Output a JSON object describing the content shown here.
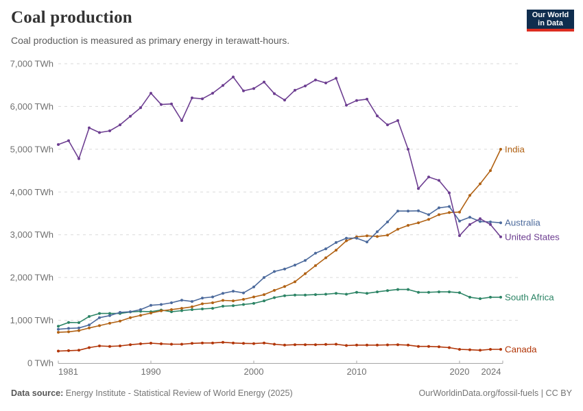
{
  "header": {
    "title": "Coal production",
    "subtitle": "Coal production is measured as primary energy in terawatt-hours."
  },
  "logo": {
    "line1": "Our World",
    "line2": "in Data",
    "bg_color": "#0f2d4e",
    "accent_color": "#dd2d20"
  },
  "footer": {
    "source_label": "Data source:",
    "source": "Energy Institute - Statistical Review of World Energy (2025)",
    "link": "OurWorldinData.org/fossil-fuels",
    "divider": " | ",
    "license": "CC BY"
  },
  "chart_data": {
    "type": "line",
    "title": "Coal production",
    "unit": "TWh",
    "xlim": [
      1981,
      2024
    ],
    "ylim": [
      0,
      7000
    ],
    "x_ticks": [
      1981,
      1990,
      2000,
      2010,
      2020,
      2024
    ],
    "y_ticks": [
      0,
      1000,
      2000,
      3000,
      4000,
      5000,
      6000,
      7000
    ],
    "grid": "horizontal-dashed",
    "legend_position": "end-of-line-labels",
    "grid_color": "#dadada",
    "axis_color": "#a5a5a5",
    "tick_label_color": "#6f6f6f",
    "x": [
      1981,
      1982,
      1983,
      1984,
      1985,
      1986,
      1987,
      1988,
      1989,
      1990,
      1991,
      1992,
      1993,
      1994,
      1995,
      1996,
      1997,
      1998,
      1999,
      2000,
      2001,
      2002,
      2003,
      2004,
      2005,
      2006,
      2007,
      2008,
      2009,
      2010,
      2011,
      2012,
      2013,
      2014,
      2015,
      2016,
      2017,
      2018,
      2019,
      2020,
      2021,
      2022,
      2023,
      2024
    ],
    "series": [
      {
        "name": "Canada",
        "color": "#b13507",
        "values": [
          280,
          290,
          300,
          360,
          400,
          390,
          400,
          430,
          450,
          465,
          450,
          440,
          440,
          460,
          470,
          470,
          485,
          470,
          460,
          455,
          470,
          440,
          420,
          430,
          430,
          430,
          435,
          440,
          410,
          420,
          420,
          420,
          425,
          430,
          420,
          390,
          390,
          380,
          360,
          320,
          310,
          300,
          320,
          320
        ]
      },
      {
        "name": "South Africa",
        "color": "#2c8465",
        "values": [
          860,
          950,
          945,
          1090,
          1160,
          1160,
          1160,
          1195,
          1210,
          1200,
          1240,
          1200,
          1225,
          1250,
          1265,
          1280,
          1330,
          1340,
          1370,
          1395,
          1455,
          1530,
          1575,
          1590,
          1590,
          1600,
          1610,
          1630,
          1610,
          1655,
          1630,
          1665,
          1695,
          1720,
          1720,
          1655,
          1655,
          1665,
          1665,
          1645,
          1540,
          1505,
          1540,
          1540
        ]
      },
      {
        "name": "India",
        "color": "#b16214",
        "values": [
          720,
          730,
          760,
          820,
          875,
          930,
          980,
          1060,
          1115,
          1170,
          1220,
          1250,
          1280,
          1315,
          1385,
          1410,
          1465,
          1455,
          1490,
          1545,
          1600,
          1700,
          1790,
          1900,
          2090,
          2280,
          2460,
          2640,
          2860,
          2950,
          2975,
          2960,
          2990,
          3130,
          3220,
          3280,
          3360,
          3470,
          3520,
          3530,
          3920,
          4190,
          4500,
          5000
        ]
      },
      {
        "name": "Australia",
        "color": "#4c6a9c",
        "values": [
          790,
          810,
          820,
          890,
          1060,
          1110,
          1185,
          1200,
          1250,
          1350,
          1370,
          1410,
          1470,
          1440,
          1520,
          1545,
          1630,
          1680,
          1640,
          1780,
          2000,
          2140,
          2200,
          2290,
          2400,
          2570,
          2670,
          2820,
          2920,
          2920,
          2830,
          3070,
          3300,
          3555,
          3555,
          3560,
          3470,
          3630,
          3660,
          3320,
          3410,
          3310,
          3300,
          3280
        ]
      },
      {
        "name": "United States",
        "color": "#6d3e91",
        "values": [
          5110,
          5200,
          4780,
          5500,
          5390,
          5430,
          5570,
          5770,
          5970,
          6310,
          6045,
          6060,
          5670,
          6200,
          6180,
          6310,
          6490,
          6690,
          6365,
          6420,
          6570,
          6300,
          6150,
          6380,
          6480,
          6620,
          6550,
          6660,
          6030,
          6140,
          6170,
          5780,
          5570,
          5670,
          5000,
          4080,
          4350,
          4270,
          3980,
          2980,
          3240,
          3375,
          3240,
          2950
        ]
      }
    ]
  }
}
